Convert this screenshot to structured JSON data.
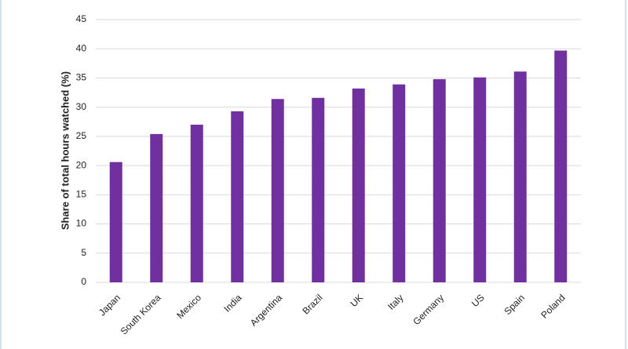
{
  "chart_data": {
    "type": "bar",
    "y_label": "Share of total hours watched (%)",
    "categories": [
      "Japan",
      "South Korea",
      "Mexico",
      "India",
      "Argentina",
      "Brazil",
      "UK",
      "Italy",
      "Germany",
      "US",
      "Spain",
      "Poland"
    ],
    "values": [
      20.6,
      25.4,
      27.0,
      29.3,
      31.4,
      31.6,
      33.2,
      33.9,
      34.8,
      35.1,
      36.1,
      39.7
    ],
    "color": "#7030a0",
    "ylim": [
      0,
      45
    ],
    "yticks": [
      0,
      5,
      10,
      15,
      20,
      25,
      30,
      35,
      40,
      45
    ],
    "grid": true
  }
}
